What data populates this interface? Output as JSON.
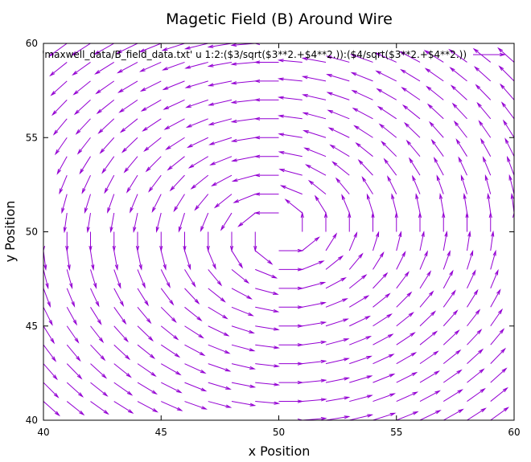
{
  "chart_data": {
    "type": "vector-field",
    "title": "Magetic Field (B) Around Wire",
    "xlabel": "x Position",
    "ylabel": "y Position",
    "xlim": [
      40,
      60
    ],
    "ylim": [
      40,
      60
    ],
    "x_ticks": [
      40,
      45,
      50,
      55,
      60
    ],
    "y_ticks": [
      40,
      45,
      50,
      55,
      60
    ],
    "x_tick_labels": [
      "40",
      "45",
      "50",
      "55",
      "60"
    ],
    "y_tick_labels": [
      "40",
      "45",
      "50",
      "55",
      "60"
    ],
    "grid": false,
    "legend_placement": "top-right",
    "series": [
      {
        "name": "'maxwell_data/B_field_data.txt' u 1:2:($3/sqrt($3**2.+$4**2.)):($4/sqrt($3**2.+$4**2.))",
        "color": "#9400d3",
        "field": {
          "center": [
            50,
            50
          ],
          "grid_x_start": 40,
          "grid_x_end": 60,
          "grid_x_step": 1,
          "grid_y_start": 40,
          "grid_y_end": 60,
          "grid_y_step": 1,
          "vector_length": 1,
          "rotation": "counterclockwise",
          "normalized": true
        }
      }
    ]
  }
}
